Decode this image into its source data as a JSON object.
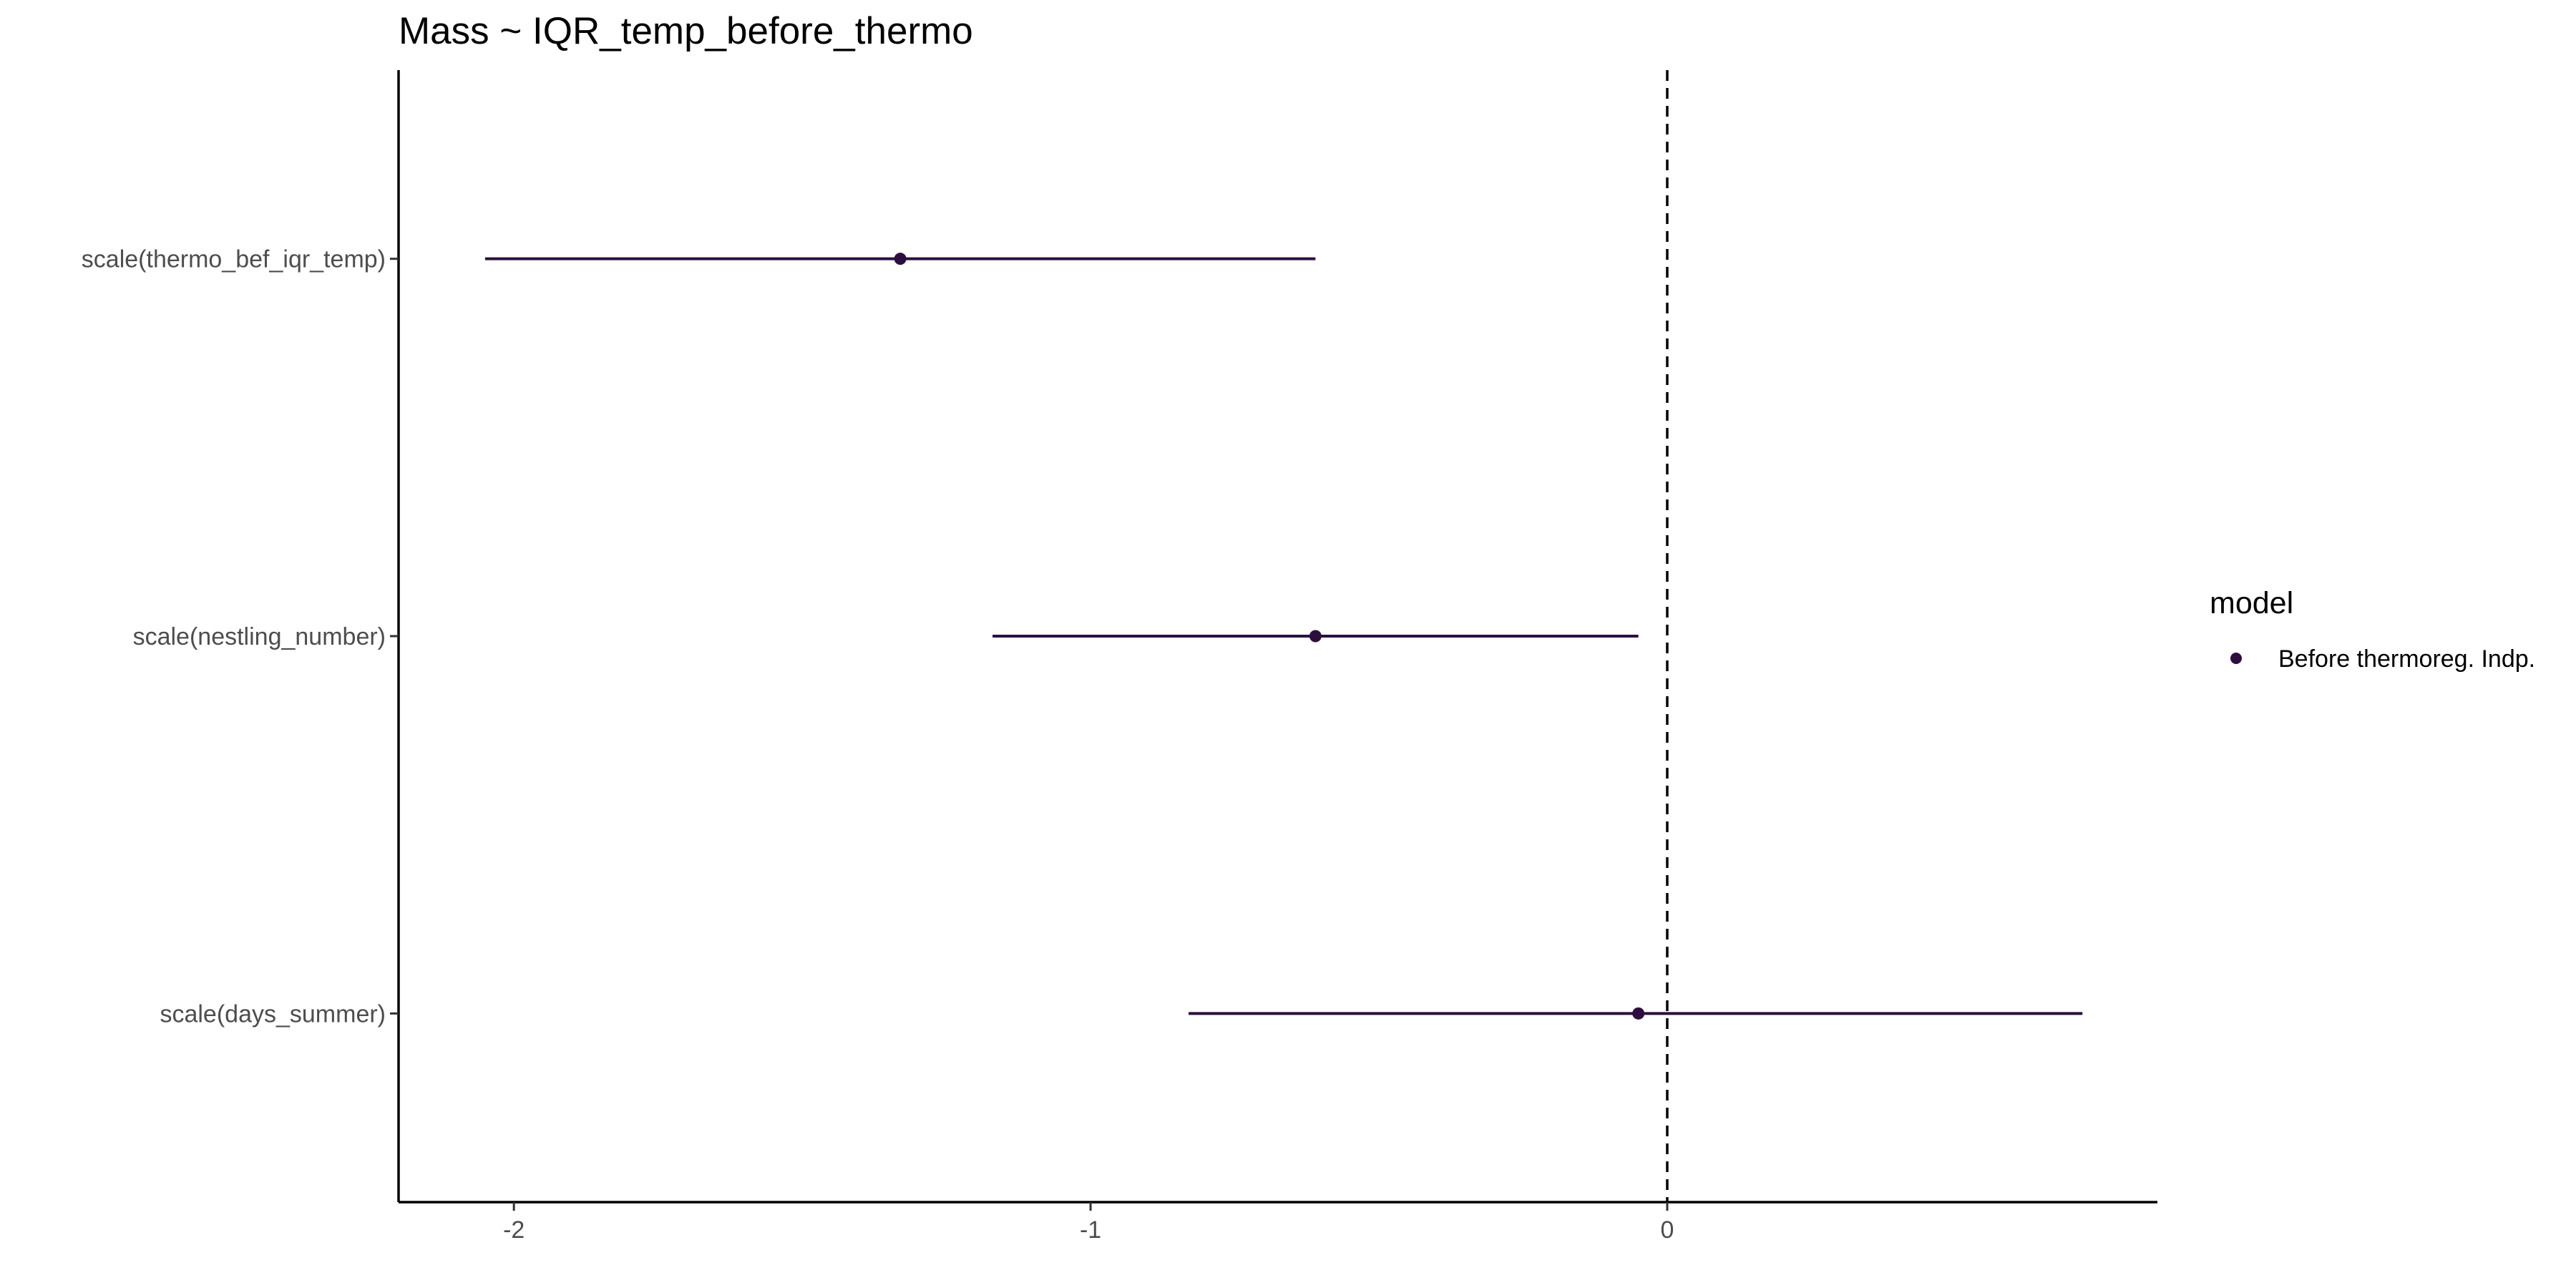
{
  "chart_data": {
    "type": "scatter",
    "subtype": "coefficient-plot",
    "title": "Mass ~ IQR_temp_before_thermo",
    "xlabel": "",
    "ylabel": "",
    "xlim": [
      -2.2,
      0.85
    ],
    "xticks": [
      -2,
      -1,
      0
    ],
    "xtick_labels": [
      "-2",
      "-1",
      "0"
    ],
    "reference_line": {
      "x": 0,
      "style": "dashed",
      "color": "#000000"
    },
    "grid": false,
    "categories": [
      "scale(thermo_bef_iqr_temp)",
      "scale(nestling_number)",
      "scale(days_summer)"
    ],
    "legend": {
      "title": "model",
      "position": "right",
      "entries": [
        "Before thermoreg. Indp."
      ]
    },
    "series": [
      {
        "name": "Before thermoreg. Indp.",
        "color": "#2d0f3f",
        "points": [
          {
            "term": "scale(thermo_bef_iqr_temp)",
            "estimate": -1.33,
            "conf_low": -2.05,
            "conf_high": -0.61
          },
          {
            "term": "scale(nestling_number)",
            "estimate": -0.61,
            "conf_low": -1.17,
            "conf_high": -0.05
          },
          {
            "term": "scale(days_summer)",
            "estimate": -0.05,
            "conf_low": -0.83,
            "conf_high": 0.72
          }
        ]
      }
    ]
  }
}
